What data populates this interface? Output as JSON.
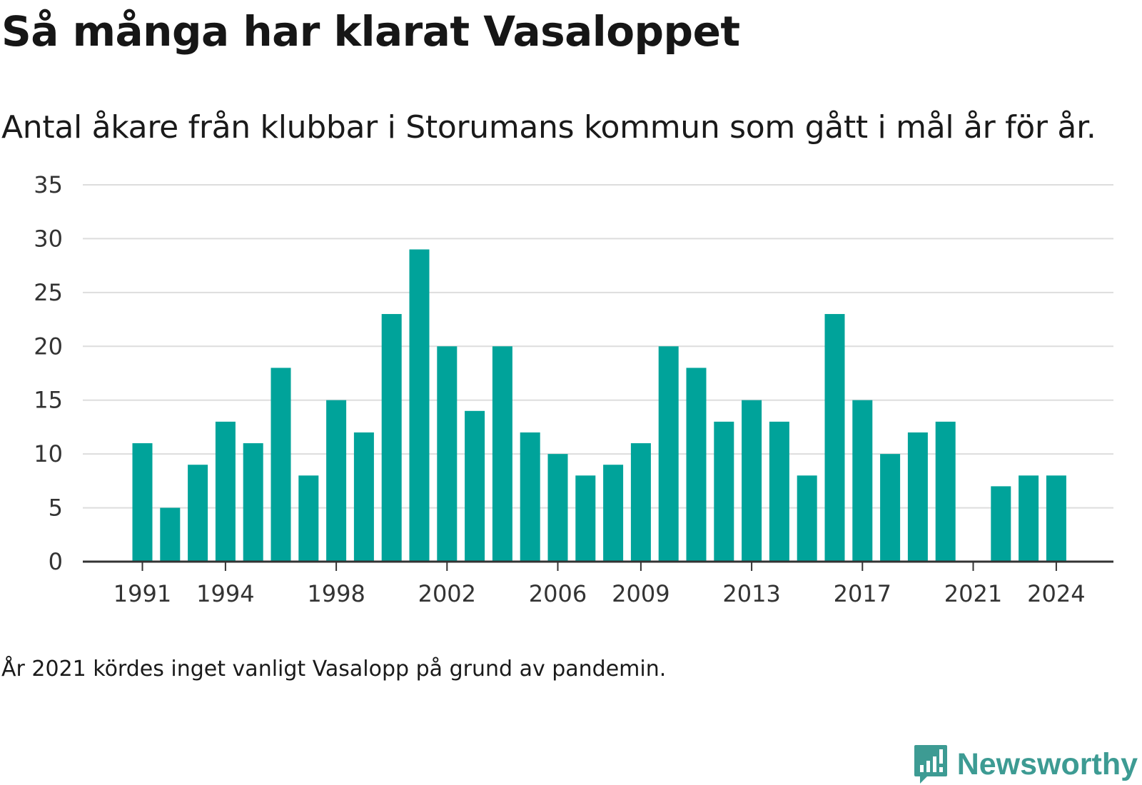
{
  "title": "Så många har klarat Vasaloppet",
  "subtitle": "Antal åkare från klubbar i Storumans kommun som gått i mål år för år.",
  "footnote": "År 2021 kördes inget vanligt Vasalopp på grund av pandemin.",
  "brand": {
    "name": "Newsworthy",
    "icon": "newsworthy-logo-icon"
  },
  "colors": {
    "bar": "#00a39a",
    "grid": "#dddddd",
    "axis": "#333333",
    "brand": "#3d9b93"
  },
  "chart_data": {
    "type": "bar",
    "title": "Så många har klarat Vasaloppet",
    "categories": [
      1991,
      1992,
      1993,
      1994,
      1995,
      1996,
      1997,
      1998,
      1999,
      2000,
      2001,
      2002,
      2003,
      2004,
      2005,
      2006,
      2007,
      2008,
      2009,
      2010,
      2011,
      2012,
      2013,
      2014,
      2015,
      2016,
      2017,
      2018,
      2019,
      2020,
      2021,
      2022,
      2023,
      2024
    ],
    "values": [
      11,
      5,
      9,
      13,
      11,
      18,
      8,
      15,
      12,
      23,
      29,
      20,
      14,
      20,
      12,
      10,
      8,
      9,
      11,
      20,
      18,
      13,
      15,
      13,
      8,
      23,
      15,
      10,
      12,
      13,
      0,
      7,
      8,
      8
    ],
    "x_tick_labels": [
      "1991",
      "1994",
      "1998",
      "2002",
      "2006",
      "2009",
      "2013",
      "2017",
      "2021",
      "2024"
    ],
    "y_ticks": [
      0,
      5,
      10,
      15,
      20,
      25,
      30,
      35
    ],
    "ylim": [
      0,
      35
    ],
    "xlabel": "",
    "ylabel": "",
    "grid": true
  }
}
